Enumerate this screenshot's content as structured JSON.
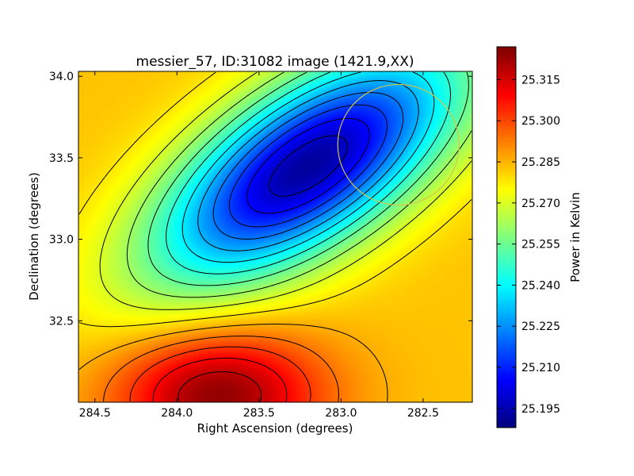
{
  "chart_data": {
    "type": "heatmap",
    "title": "messier_57, ID:31082 image (1421.9,XX)",
    "xlabel": "Right Ascension (degrees)",
    "ylabel": "Declination (degrees)",
    "xlim": [
      284.6,
      282.2
    ],
    "ylim": [
      32.0,
      34.03
    ],
    "x_ticks": [
      "284.5",
      "284.0",
      "283.5",
      "283.0",
      "282.5"
    ],
    "x_tick_values": [
      284.5,
      284.0,
      283.5,
      283.0,
      282.5
    ],
    "y_ticks": [
      "32.5",
      "33.0",
      "33.5",
      "34.0"
    ],
    "y_tick_values": [
      32.5,
      33.0,
      33.5,
      34.0
    ],
    "colorbar": {
      "label": "Power in Kelvin",
      "range": [
        25.188,
        25.327
      ],
      "colormap": "jet",
      "ticks": [
        "25.195",
        "25.210",
        "25.225",
        "25.240",
        "25.255",
        "25.270",
        "25.285",
        "25.300",
        "25.315"
      ],
      "tick_values": [
        25.195,
        25.21,
        25.225,
        25.24,
        25.255,
        25.27,
        25.285,
        25.3,
        25.315
      ]
    },
    "features": [
      {
        "kind": "minimum",
        "ra": 283.2,
        "dec": 33.45,
        "value": 25.192
      },
      {
        "kind": "maximum",
        "ra": 283.75,
        "dec": 32.05,
        "value": 25.325
      },
      {
        "kind": "background",
        "value": 25.283
      }
    ],
    "circle": {
      "ra": 282.65,
      "dec": 33.58,
      "radius_deg": 0.37,
      "color": "#d4c44a"
    }
  }
}
